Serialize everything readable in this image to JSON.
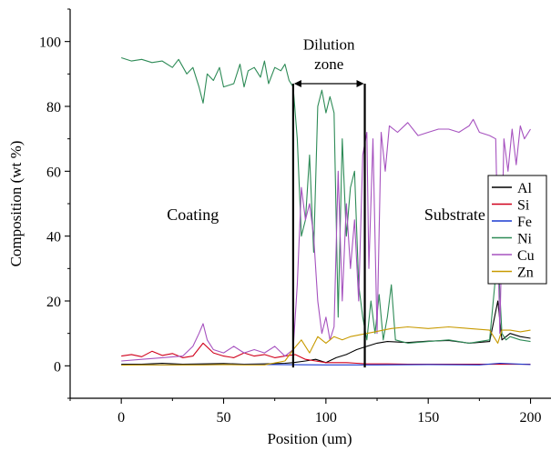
{
  "chart_data": {
    "type": "line",
    "xlabel": "Position (um)",
    "ylabel": "Composition (wt %)",
    "xlim": [
      -25,
      210
    ],
    "ylim": [
      -10,
      110
    ],
    "xticks": [
      0,
      50,
      100,
      150,
      200
    ],
    "yticks": [
      0,
      20,
      40,
      60,
      80,
      100
    ],
    "grid": false,
    "legend_position": "right",
    "annotations": {
      "dilution_title": "Dilution",
      "dilution_sub": "zone",
      "dilution_x": [
        84,
        119
      ],
      "coating": {
        "text": "Coating",
        "x": 35,
        "y": 45
      },
      "substrate": {
        "text": "Substrate",
        "x": 163,
        "y": 45
      }
    },
    "series": [
      {
        "name": "Al",
        "color": "#000000",
        "x": [
          0,
          10,
          20,
          30,
          40,
          50,
          60,
          70,
          80,
          84,
          90,
          95,
          100,
          105,
          110,
          115,
          120,
          125,
          130,
          140,
          150,
          160,
          170,
          180,
          184,
          186,
          190,
          195,
          200
        ],
        "y": [
          0.5,
          0.5,
          0.8,
          0.5,
          0.6,
          0.7,
          0.5,
          0.6,
          0.8,
          1.0,
          1.5,
          2.0,
          1.0,
          2.5,
          3.5,
          5.0,
          6.0,
          7.0,
          7.5,
          7.2,
          7.6,
          7.8,
          7.0,
          7.5,
          20.0,
          8.0,
          10.0,
          9.0,
          8.5
        ]
      },
      {
        "name": "Si",
        "color": "#d0001b",
        "x": [
          0,
          5,
          10,
          15,
          20,
          25,
          30,
          35,
          40,
          45,
          50,
          55,
          60,
          65,
          70,
          75,
          80,
          85,
          90,
          95,
          100,
          105,
          110,
          115,
          120,
          125,
          130,
          140,
          150,
          160,
          170,
          180,
          190,
          200
        ],
        "y": [
          3.0,
          3.5,
          2.8,
          4.5,
          3.2,
          3.8,
          2.5,
          3.0,
          7.0,
          4.0,
          3.0,
          2.5,
          4.0,
          3.0,
          3.5,
          2.5,
          3.0,
          3.5,
          2.0,
          1.5,
          1.0,
          1.0,
          1.0,
          0.8,
          0.6,
          0.6,
          0.6,
          0.5,
          0.5,
          0.5,
          0.5,
          0.5,
          0.5,
          0.5
        ]
      },
      {
        "name": "Fe",
        "color": "#1a3ad1",
        "x": [
          0,
          25,
          50,
          75,
          100,
          125,
          150,
          175,
          185,
          200
        ],
        "y": [
          0.3,
          0.3,
          0.4,
          0.4,
          0.3,
          0.3,
          0.4,
          0.3,
          0.8,
          0.4
        ]
      },
      {
        "name": "Ni",
        "color": "#2e8b57",
        "x": [
          0,
          5,
          10,
          15,
          20,
          25,
          28,
          32,
          35,
          38,
          40,
          42,
          45,
          48,
          50,
          55,
          58,
          60,
          62,
          65,
          68,
          70,
          72,
          75,
          78,
          80,
          82,
          84,
          86,
          88,
          90,
          92,
          94,
          96,
          98,
          100,
          102,
          104,
          106,
          108,
          110,
          112,
          114,
          116,
          118,
          120,
          122,
          124,
          126,
          128,
          130,
          132,
          134,
          140,
          150,
          160,
          170,
          180,
          184,
          186,
          188,
          190,
          195,
          200
        ],
        "y": [
          95,
          94,
          94.5,
          93.5,
          94,
          92,
          94.5,
          90,
          92,
          86,
          81,
          90,
          88,
          92,
          86,
          87,
          93,
          86,
          91,
          92,
          89,
          94,
          87,
          92,
          91,
          93,
          88,
          86,
          70,
          40,
          45,
          65,
          35,
          80,
          85,
          78,
          83,
          78,
          15,
          70,
          40,
          55,
          60,
          25,
          15,
          8,
          20,
          10,
          22,
          8,
          15,
          25,
          8,
          7,
          7.5,
          8,
          7,
          8,
          35,
          10,
          8,
          9,
          8,
          7.5
        ]
      },
      {
        "name": "Cu",
        "color": "#a652bf",
        "x": [
          0,
          10,
          20,
          30,
          35,
          38,
          40,
          42,
          45,
          50,
          55,
          60,
          65,
          70,
          75,
          80,
          84,
          86,
          88,
          90,
          92,
          94,
          96,
          98,
          100,
          102,
          104,
          106,
          108,
          110,
          112,
          114,
          116,
          118,
          120,
          121,
          123,
          125,
          127,
          129,
          131,
          135,
          140,
          145,
          150,
          155,
          160,
          165,
          170,
          172,
          175,
          180,
          183,
          185,
          187,
          189,
          191,
          193,
          195,
          197,
          200
        ],
        "y": [
          1.5,
          2.0,
          2.5,
          3.0,
          6.0,
          10.0,
          13.0,
          8.0,
          5.0,
          4.0,
          6.0,
          4.0,
          5.0,
          4.0,
          6.0,
          3.0,
          5.0,
          25.0,
          55.0,
          45.0,
          50.0,
          40.0,
          20.0,
          10.0,
          15.0,
          8.0,
          12.0,
          60.0,
          20.0,
          50.0,
          30.0,
          45.0,
          20.0,
          65.0,
          72.0,
          30.0,
          70.0,
          10.0,
          72.0,
          60.0,
          74.0,
          72.0,
          75.0,
          71.0,
          72.0,
          73.0,
          73.0,
          72.0,
          74.0,
          76.0,
          72.0,
          71.0,
          70.0,
          10.0,
          70.0,
          60.0,
          73.0,
          62.0,
          74.0,
          70.0,
          73.0
        ]
      },
      {
        "name": "Zn",
        "color": "#c89a00",
        "x": [
          0,
          10,
          20,
          30,
          40,
          50,
          60,
          70,
          80,
          84,
          88,
          92,
          96,
          100,
          104,
          108,
          112,
          116,
          120,
          124,
          128,
          132,
          140,
          150,
          160,
          170,
          180,
          184,
          186,
          190,
          195,
          200
        ],
        "y": [
          0.2,
          0.3,
          0.3,
          0.3,
          0.3,
          0.4,
          0.3,
          0.3,
          1.5,
          5.0,
          8.0,
          4.0,
          9.0,
          7.0,
          9.0,
          8.0,
          9.0,
          9.5,
          10.0,
          10.5,
          11.0,
          11.5,
          12.0,
          11.5,
          12.0,
          11.5,
          11.0,
          7.0,
          11.0,
          11.0,
          10.5,
          11.0
        ]
      }
    ]
  }
}
